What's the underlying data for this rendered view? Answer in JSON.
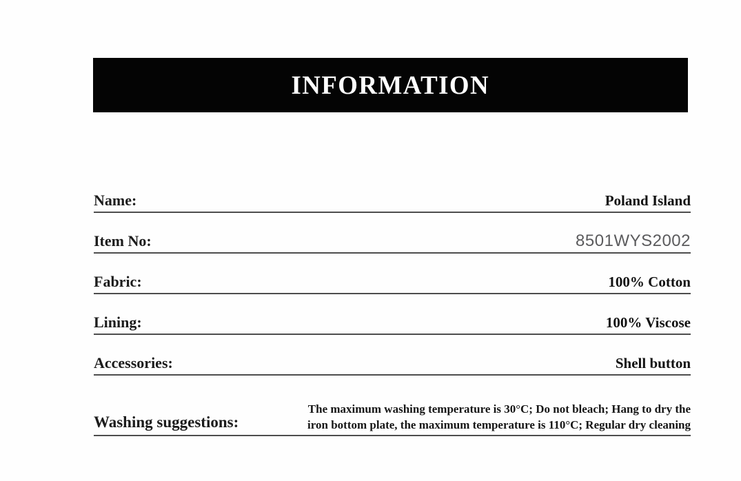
{
  "header": {
    "title": "INFORMATION",
    "bg_color": "#040404",
    "text_color": "#ffffff"
  },
  "rows": [
    {
      "label": "Name:",
      "value": "Poland Island"
    },
    {
      "label": "Item No:",
      "value": "8501WYS2002"
    },
    {
      "label": "Fabric:",
      "value": "100% Cotton"
    },
    {
      "label": "Lining:",
      "value": "100% Viscose"
    },
    {
      "label": "Accessories:",
      "value": "Shell button"
    },
    {
      "label": "Washing suggestions:",
      "value": "The maximum washing temperature is 30°C; Do not bleach; Hang to dry the iron bottom plate, the maximum temperature is 110°C; Regular dry cleaning"
    }
  ],
  "colors": {
    "divider_line": "#4d4d4d",
    "label_text": "#1c1c1c",
    "value_text": "#111111",
    "item_no_text": "#5b5b5d"
  }
}
